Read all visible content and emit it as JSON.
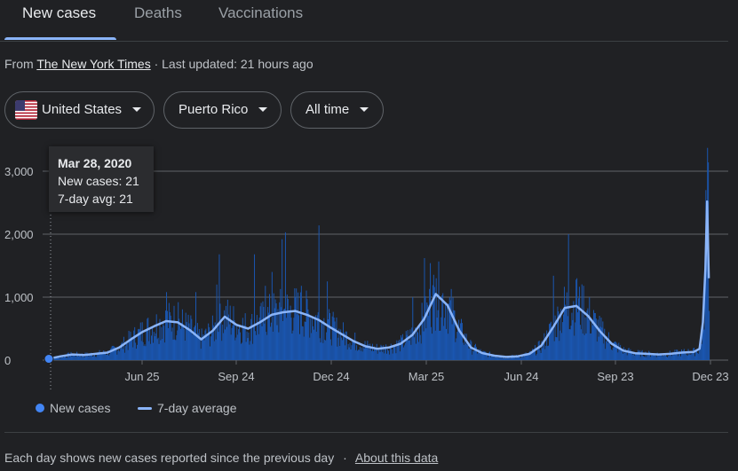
{
  "tabs": [
    {
      "label": "New cases",
      "active": true
    },
    {
      "label": "Deaths",
      "active": false
    },
    {
      "label": "Vaccinations",
      "active": false
    }
  ],
  "source": {
    "prefix": "From ",
    "link": "The New York Times",
    "updated": " · Last updated: 21 hours ago"
  },
  "filters": {
    "country": "United States",
    "region": "Puerto Rico",
    "range": "All time"
  },
  "tooltip": {
    "date": "Mar 28, 2020",
    "new_cases": "New cases: 21",
    "avg": "7-day avg: 21"
  },
  "legend": {
    "cases": "New cases",
    "avg": "7-day average"
  },
  "footer": {
    "text": "Each day shows new cases reported since the previous day",
    "sep": "·",
    "link": "About this data"
  },
  "colors": {
    "bars": "#1a56b0",
    "avg_line": "#8ab4f8",
    "accent": "#8ab4f8"
  },
  "chart_data": {
    "type": "bar",
    "title": "",
    "ylim": [
      0,
      3200
    ],
    "yticks": [
      "0",
      "1,000",
      "2,000",
      "3,000"
    ],
    "ytick_values": [
      0,
      1000,
      2000,
      3000
    ],
    "xticks": [
      "Jun 25",
      "Sep 24",
      "Dec 24",
      "Mar 25",
      "Jun 24",
      "Sep 23",
      "Dec 23"
    ],
    "series": [
      {
        "name": "7-day average",
        "type": "line",
        "points": [
          [
            0,
            21
          ],
          [
            14,
            60
          ],
          [
            28,
            90
          ],
          [
            42,
            80
          ],
          [
            56,
            100
          ],
          [
            70,
            120
          ],
          [
            84,
            200
          ],
          [
            98,
            330
          ],
          [
            112,
            450
          ],
          [
            126,
            540
          ],
          [
            140,
            620
          ],
          [
            154,
            600
          ],
          [
            168,
            480
          ],
          [
            182,
            330
          ],
          [
            196,
            470
          ],
          [
            210,
            690
          ],
          [
            224,
            560
          ],
          [
            238,
            500
          ],
          [
            252,
            600
          ],
          [
            266,
            720
          ],
          [
            280,
            760
          ],
          [
            294,
            780
          ],
          [
            308,
            720
          ],
          [
            322,
            640
          ],
          [
            336,
            520
          ],
          [
            350,
            410
          ],
          [
            364,
            300
          ],
          [
            378,
            220
          ],
          [
            392,
            180
          ],
          [
            406,
            200
          ],
          [
            420,
            260
          ],
          [
            434,
            400
          ],
          [
            448,
            650
          ],
          [
            462,
            1050
          ],
          [
            476,
            870
          ],
          [
            490,
            470
          ],
          [
            504,
            200
          ],
          [
            518,
            110
          ],
          [
            532,
            70
          ],
          [
            546,
            50
          ],
          [
            560,
            60
          ],
          [
            574,
            100
          ],
          [
            588,
            230
          ],
          [
            602,
            520
          ],
          [
            616,
            830
          ],
          [
            630,
            860
          ],
          [
            644,
            700
          ],
          [
            658,
            460
          ],
          [
            672,
            260
          ],
          [
            686,
            150
          ],
          [
            700,
            110
          ],
          [
            714,
            100
          ],
          [
            728,
            90
          ],
          [
            742,
            100
          ],
          [
            756,
            120
          ],
          [
            770,
            130
          ],
          [
            777,
            180
          ],
          [
            781,
            600
          ],
          [
            784,
            1450
          ],
          [
            786,
            2520
          ],
          [
            788,
            1300
          ]
        ]
      },
      {
        "name": "New cases",
        "type": "bar",
        "spikes": [
          [
            140,
            1080
          ],
          [
            154,
            920
          ],
          [
            175,
            1080
          ],
          [
            200,
            1200
          ],
          [
            203,
            1680
          ],
          [
            245,
            1680
          ],
          [
            258,
            1180
          ],
          [
            266,
            1400
          ],
          [
            278,
            1920
          ],
          [
            282,
            2030
          ],
          [
            301,
            1180
          ],
          [
            322,
            2140
          ],
          [
            332,
            1250
          ],
          [
            434,
            1000
          ],
          [
            448,
            1620
          ],
          [
            455,
            1540
          ],
          [
            462,
            1300
          ],
          [
            602,
            1340
          ],
          [
            620,
            2000
          ],
          [
            630,
            1300
          ],
          [
            638,
            1180
          ],
          [
            784,
            2700
          ],
          [
            786,
            3370
          ],
          [
            787,
            3140
          ]
        ]
      }
    ]
  }
}
